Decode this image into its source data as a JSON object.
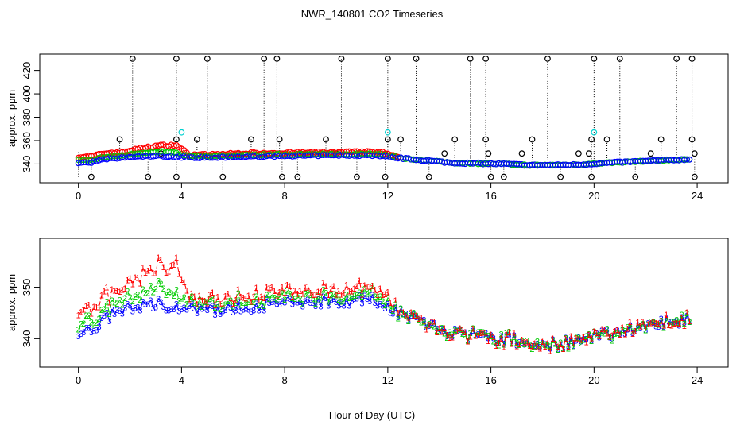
{
  "chart_data": [
    {
      "type": "scatter",
      "title": "NWR_140801  CO2 Timeseries",
      "xlabel": "",
      "ylabel": "approx. ppm",
      "xlim": [
        -1.5,
        25.2
      ],
      "ylim": [
        324,
        434
      ],
      "x_ticks": [
        0,
        4,
        8,
        12,
        16,
        20,
        24
      ],
      "y_ticks": [
        340,
        360,
        380,
        400,
        420
      ],
      "baseline": [
        [
          0.0,
          341
        ],
        [
          0.5,
          341.5
        ],
        [
          1.0,
          344
        ],
        [
          1.5,
          345
        ],
        [
          2.0,
          346
        ],
        [
          3.0,
          347
        ],
        [
          4.0,
          346
        ],
        [
          5.0,
          345.5
        ],
        [
          6.0,
          346
        ],
        [
          8.0,
          347
        ],
        [
          10.0,
          347.5
        ],
        [
          11.5,
          347.5
        ],
        [
          12.5,
          345
        ],
        [
          13.5,
          343
        ],
        [
          14.5,
          341
        ],
        [
          15.5,
          340.5
        ],
        [
          16.5,
          340
        ],
        [
          17.5,
          339
        ],
        [
          18.5,
          339
        ],
        [
          19.5,
          339.5
        ],
        [
          20.5,
          341
        ],
        [
          21.5,
          342
        ],
        [
          22.5,
          343
        ],
        [
          23.7,
          344
        ]
      ],
      "red_excess": [
        [
          1.8,
          5
        ],
        [
          2.5,
          7
        ],
        [
          3.2,
          9
        ],
        [
          3.8,
          10
        ],
        [
          4.3,
          2
        ],
        [
          6.5,
          3
        ],
        [
          8.0,
          2.5
        ],
        [
          10.0,
          2.5
        ],
        [
          11.8,
          3
        ],
        [
          12.5,
          0
        ]
      ],
      "green_excess": [
        [
          1.8,
          2
        ],
        [
          2.6,
          3
        ],
        [
          3.5,
          4
        ],
        [
          4.3,
          1
        ],
        [
          6.5,
          1.5
        ],
        [
          10.0,
          1
        ],
        [
          11.8,
          1.5
        ],
        [
          12.5,
          0
        ]
      ],
      "spikes_high": [
        2.1,
        3.8,
        5.0,
        7.2,
        7.7,
        10.2,
        12.0,
        13.1,
        15.2,
        15.8,
        18.2,
        20.0,
        21.0,
        23.2,
        23.8
      ],
      "spikes_mid": [
        1.6,
        3.8,
        4.6,
        6.7,
        7.8,
        9.6,
        12.0,
        12.5,
        14.6,
        15.8,
        17.6,
        19.9,
        20.5,
        22.6,
        23.8
      ],
      "spikes_low": [
        1.1,
        3.2,
        6.2,
        7.8,
        10.0,
        14.2,
        15.9,
        17.2,
        19.4,
        19.8,
        22.2,
        23.9
      ],
      "drops": [
        0.5,
        2.7,
        3.8,
        5.6,
        7.9,
        8.5,
        10.8,
        11.9,
        13.6,
        16.0,
        16.5,
        18.7,
        19.9,
        21.6,
        23.9
      ],
      "cyan_points": [
        [
          4.0,
          367
        ],
        [
          12.0,
          367
        ],
        [
          20.0,
          367
        ]
      ],
      "high_value": 430,
      "mid_value": 361,
      "low_value": 349,
      "drop_value": 329,
      "series": [
        {
          "name": "red",
          "color": "#ff0000"
        },
        {
          "name": "green",
          "color": "#00cc00"
        },
        {
          "name": "blue",
          "color": "#0000ff"
        },
        {
          "name": "black outliers",
          "color": "#000000"
        },
        {
          "name": "cyan",
          "color": "#00d0d0"
        }
      ]
    },
    {
      "type": "line",
      "title": "",
      "xlabel": "Hour of Day (UTC)",
      "ylabel": "approx. ppm",
      "xlim": [
        -1.5,
        25.2
      ],
      "ylim": [
        334.5,
        359.5
      ],
      "x_ticks": [
        0,
        4,
        8,
        12,
        16,
        20,
        24
      ],
      "y_ticks": [
        340,
        350
      ],
      "x_range": [
        0.0,
        23.7
      ],
      "step": 0.1,
      "series": [
        {
          "name": "1",
          "color": "#ff0000",
          "marker": "1"
        },
        {
          "name": "2",
          "color": "#00cc00",
          "marker": "2"
        },
        {
          "name": "3",
          "color": "#0000ff",
          "marker": "3"
        }
      ]
    }
  ]
}
